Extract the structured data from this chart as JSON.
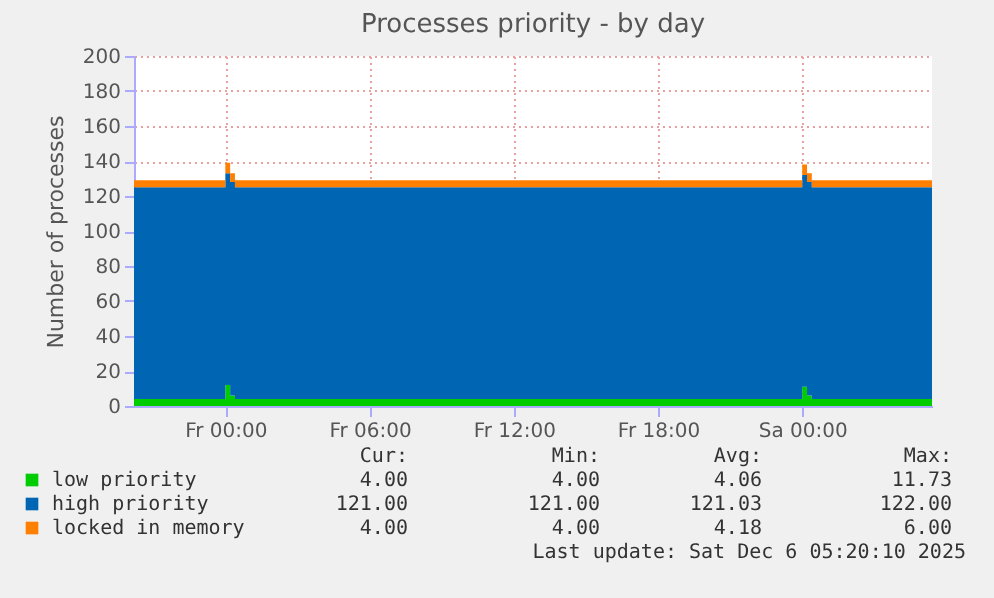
{
  "chart_data": {
    "type": "area",
    "title": "Processes priority - by day",
    "ylabel": "Number of processes",
    "stacked": true,
    "grid": true,
    "legend": "bottom",
    "x": [
      "2025-12-04T20:12",
      "2025-12-04T23:48",
      "2025-12-05T00:00",
      "2025-12-05T00:12",
      "2025-12-05T00:24",
      "2025-12-05T06:00",
      "2025-12-05T12:00",
      "2025-12-05T23:48",
      "2025-12-06T00:00",
      "2025-12-06T00:12",
      "2025-12-06T00:24",
      "2025-12-06T05:24"
    ],
    "xlim": [
      "2025-12-04T20:12",
      "2025-12-06T05:24"
    ],
    "xticks": [
      {
        "value": "2025-12-05T00:00",
        "label": "Fr 00:00"
      },
      {
        "value": "2025-12-05T06:00",
        "label": "Fr 06:00"
      },
      {
        "value": "2025-12-05T12:00",
        "label": "Fr 12:00"
      },
      {
        "value": "2025-12-05T18:00",
        "label": "Fr 18:00"
      },
      {
        "value": "2025-12-06T00:00",
        "label": "Sa 00:00"
      }
    ],
    "ylim": [
      0,
      200
    ],
    "yticks": [
      0,
      20,
      40,
      60,
      80,
      100,
      120,
      140,
      160,
      180,
      200
    ],
    "series": [
      {
        "name": "low priority",
        "color": "#00cc00",
        "values": [
          4,
          4,
          12,
          6,
          4,
          4,
          4,
          4,
          11,
          6,
          4,
          4
        ]
      },
      {
        "name": "high priority",
        "color": "#0066b3",
        "values": [
          121,
          121,
          121,
          122,
          121,
          121,
          121,
          121,
          121,
          122,
          121,
          121
        ]
      },
      {
        "name": "locked in memory",
        "color": "#ff8000",
        "values": [
          4,
          4,
          6,
          5,
          4,
          4,
          4,
          4,
          6,
          5,
          4,
          4
        ]
      }
    ],
    "annotations": [
      "Cur:",
      "Min:",
      "Avg:",
      "Max:",
      "4.00",
      "4.00",
      "4.06",
      "11.73",
      "121.00",
      "121.00",
      "121.03",
      "122.00",
      "4.00",
      "4.00",
      "4.18",
      "6.00",
      "Last update: Sat Dec  6 05:20:10 2025"
    ]
  }
}
